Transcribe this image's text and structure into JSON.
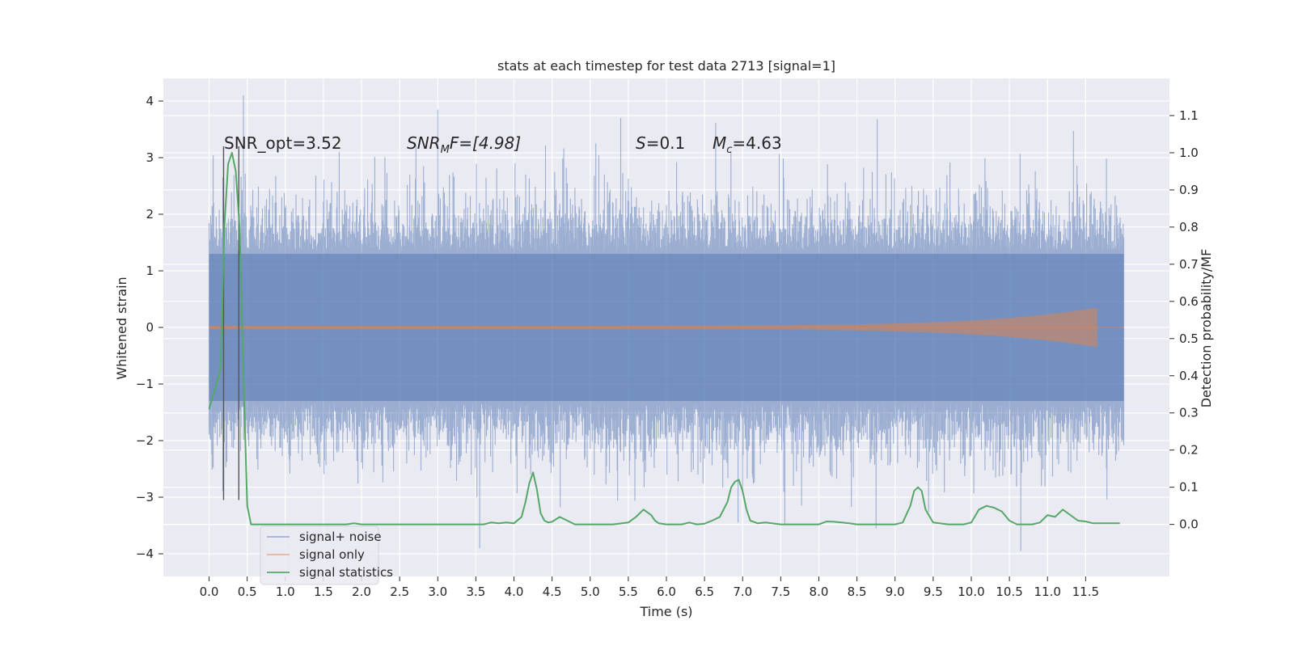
{
  "chart_data": {
    "type": "line",
    "title": "stats at each timestep for test data 2713 [signal=1]",
    "xlabel": "Time (s)",
    "ylabel": "Whitened strain",
    "y2label": "Detection probability/MF",
    "xlim": [
      -0.6,
      12.6
    ],
    "ylim": [
      -4.4,
      4.4
    ],
    "y2lim": [
      -0.14,
      1.2
    ],
    "xticks": [
      0.0,
      0.5,
      1.0,
      1.5,
      2.0,
      2.5,
      3.0,
      3.5,
      4.0,
      4.5,
      5.0,
      5.5,
      6.0,
      6.5,
      7.0,
      7.5,
      8.0,
      8.5,
      9.0,
      9.5,
      10.0,
      10.5,
      11.0,
      11.5
    ],
    "xtick_labels": [
      "0.0",
      "0.5",
      "1.0",
      "1.5",
      "2.0",
      "2.5",
      "3.0",
      "3.5",
      "4.0",
      "4.5",
      "5.0",
      "5.5",
      "6.0",
      "6.5",
      "7.0",
      "7.5",
      "8.0",
      "8.5",
      "9.0",
      "9.5",
      "10.0",
      "10.5",
      "11.0",
      "11.5"
    ],
    "yticks": [
      -4,
      -3,
      -2,
      -1,
      0,
      1,
      2,
      3,
      4
    ],
    "ytick_labels": [
      "−4",
      "−3",
      "−2",
      "−1",
      "0",
      "1",
      "2",
      "3",
      "4"
    ],
    "y2ticks": [
      0.0,
      0.1,
      0.2,
      0.3,
      0.4,
      0.5,
      0.6,
      0.7,
      0.8,
      0.9,
      1.0,
      1.1
    ],
    "y2tick_labels": [
      "0.0",
      "0.1",
      "0.2",
      "0.3",
      "0.4",
      "0.5",
      "0.6",
      "0.7",
      "0.8",
      "0.9",
      "1.0",
      "1.1"
    ],
    "grid": true,
    "legend_position": "lower-left",
    "annotations": {
      "snr_opt": "SNR_opt=3.52",
      "snr_mf_label": "SNR",
      "snr_mf_sub": "M",
      "snr_mf_tail": "F=[4.98]",
      "s_label": "S",
      "s_value": "=0.1",
      "mc_label": "M",
      "mc_sub": "c",
      "mc_value": "=4.63"
    },
    "series": [
      {
        "name": "signal+ noise",
        "color": "#4c72b0",
        "kind": "dense noise",
        "x_range": [
          0.0,
          12.0
        ],
        "y_band": [
          -1.3,
          1.3
        ],
        "y_extremes": [
          -3.9,
          4.1
        ]
      },
      {
        "name": "signal only",
        "color": "#dd8452",
        "kind": "chirp",
        "x_range": [
          0.0,
          11.65
        ],
        "amplitude_start": 0.03,
        "amplitude_peak": 0.35
      },
      {
        "name": "signal statistics",
        "color": "#55a868",
        "axis": "right",
        "x": [
          0.0,
          0.1,
          0.15,
          0.2,
          0.25,
          0.3,
          0.35,
          0.4,
          0.45,
          0.5,
          0.55,
          0.6,
          1.0,
          1.5,
          1.8,
          1.9,
          2.0,
          2.5,
          3.0,
          3.5,
          3.6,
          3.7,
          3.8,
          3.9,
          4.0,
          4.1,
          4.15,
          4.2,
          4.25,
          4.3,
          4.35,
          4.4,
          4.45,
          4.5,
          4.6,
          4.7,
          4.8,
          5.0,
          5.3,
          5.5,
          5.6,
          5.7,
          5.8,
          5.85,
          5.9,
          6.0,
          6.2,
          6.3,
          6.4,
          6.5,
          6.6,
          6.7,
          6.8,
          6.85,
          6.9,
          6.95,
          7.0,
          7.05,
          7.1,
          7.2,
          7.3,
          7.5,
          7.6,
          7.8,
          8.0,
          8.1,
          8.2,
          8.3,
          8.4,
          8.5,
          9.0,
          9.1,
          9.2,
          9.25,
          9.3,
          9.35,
          9.4,
          9.5,
          9.7,
          9.9,
          10.0,
          10.1,
          10.2,
          10.3,
          10.4,
          10.5,
          10.6,
          10.7,
          10.8,
          10.9,
          11.0,
          11.1,
          11.2,
          11.3,
          11.4,
          11.5,
          11.6,
          11.8,
          11.95
        ],
        "y": [
          0.31,
          0.38,
          0.42,
          0.8,
          0.97,
          1.0,
          0.95,
          0.8,
          0.4,
          0.05,
          0.0,
          0.0,
          0.0,
          0.0,
          0.0,
          0.003,
          0.0,
          0.0,
          0.0,
          0.0,
          0.0,
          0.005,
          0.003,
          0.005,
          0.003,
          0.02,
          0.06,
          0.11,
          0.14,
          0.095,
          0.03,
          0.01,
          0.005,
          0.007,
          0.02,
          0.01,
          0.0,
          0.0,
          0.0,
          0.005,
          0.02,
          0.04,
          0.025,
          0.01,
          0.003,
          0.0,
          0.0,
          0.005,
          0.0,
          0.002,
          0.01,
          0.02,
          0.06,
          0.1,
          0.115,
          0.12,
          0.09,
          0.04,
          0.01,
          0.003,
          0.005,
          0.0,
          0.0,
          0.0,
          0.0,
          0.008,
          0.007,
          0.005,
          0.003,
          0.0,
          0.0,
          0.005,
          0.05,
          0.09,
          0.1,
          0.09,
          0.04,
          0.005,
          0.0,
          0.0,
          0.005,
          0.04,
          0.05,
          0.045,
          0.035,
          0.01,
          0.0,
          0.0,
          0.0,
          0.005,
          0.025,
          0.02,
          0.04,
          0.025,
          0.01,
          0.008,
          0.003,
          0.003,
          0.003
        ]
      }
    ],
    "vertical_lines": [
      0.19,
      0.39
    ]
  }
}
